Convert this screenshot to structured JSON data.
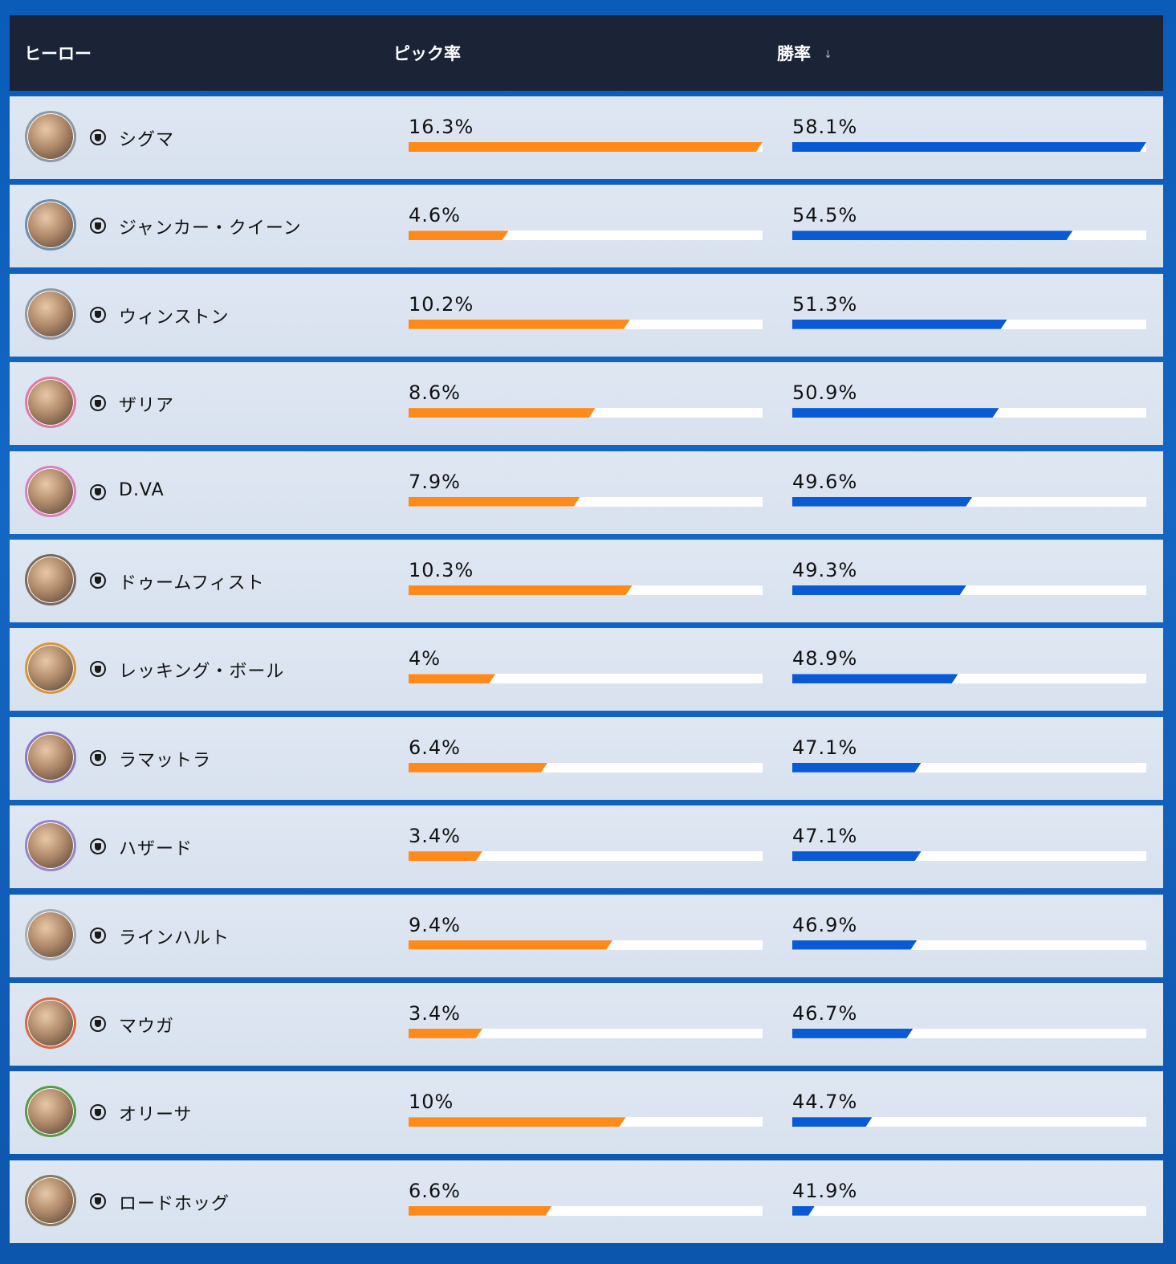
{
  "header": {
    "hero": "ヒーロー",
    "pick_rate": "ピック率",
    "win_rate": "勝率",
    "sort_icon": "↓"
  },
  "colors": {
    "pick_bar": "#ff8a1c",
    "win_bar": "#0a5bd3",
    "header_bg": "#1b2336"
  },
  "rows": [
    {
      "name": "シグマ",
      "pick": "16.3%",
      "pick_value": 16.3,
      "win": "58.1%",
      "win_value": 58.1,
      "ring": "#8f99a6"
    },
    {
      "name": "ジャンカー・クイーン",
      "pick": "4.6%",
      "pick_value": 4.6,
      "win": "54.5%",
      "win_value": 54.5,
      "ring": "#6f8fb0"
    },
    {
      "name": "ウィンストン",
      "pick": "10.2%",
      "pick_value": 10.2,
      "win": "51.3%",
      "win_value": 51.3,
      "ring": "#8f99a6"
    },
    {
      "name": "ザリア",
      "pick": "8.6%",
      "pick_value": 8.6,
      "win": "50.9%",
      "win_value": 50.9,
      "ring": "#e07aa8"
    },
    {
      "name": "D.VA",
      "pick": "7.9%",
      "pick_value": 7.9,
      "win": "49.6%",
      "win_value": 49.6,
      "ring": "#d882c0"
    },
    {
      "name": "ドゥームフィスト",
      "pick": "10.3%",
      "pick_value": 10.3,
      "win": "49.3%",
      "win_value": 49.3,
      "ring": "#7a6a60"
    },
    {
      "name": "レッキング・ボール",
      "pick": "4%",
      "pick_value": 4,
      "win": "48.9%",
      "win_value": 48.9,
      "ring": "#d8963c"
    },
    {
      "name": "ラマットラ",
      "pick": "6.4%",
      "pick_value": 6.4,
      "win": "47.1%",
      "win_value": 47.1,
      "ring": "#8a78c0"
    },
    {
      "name": "ハザード",
      "pick": "3.4%",
      "pick_value": 3.4,
      "win": "47.1%",
      "win_value": 47.1,
      "ring": "#9a86c6"
    },
    {
      "name": "ラインハルト",
      "pick": "9.4%",
      "pick_value": 9.4,
      "win": "46.9%",
      "win_value": 46.9,
      "ring": "#a8aeb6"
    },
    {
      "name": "マウガ",
      "pick": "3.4%",
      "pick_value": 3.4,
      "win": "46.7%",
      "win_value": 46.7,
      "ring": "#d86a4a"
    },
    {
      "name": "オリーサ",
      "pick": "10%",
      "pick_value": 10,
      "win": "44.7%",
      "win_value": 44.7,
      "ring": "#5a9a4a"
    },
    {
      "name": "ロードホッグ",
      "pick": "6.6%",
      "pick_value": 6.6,
      "win": "41.9%",
      "win_value": 41.9,
      "ring": "#8a7a60"
    }
  ]
}
